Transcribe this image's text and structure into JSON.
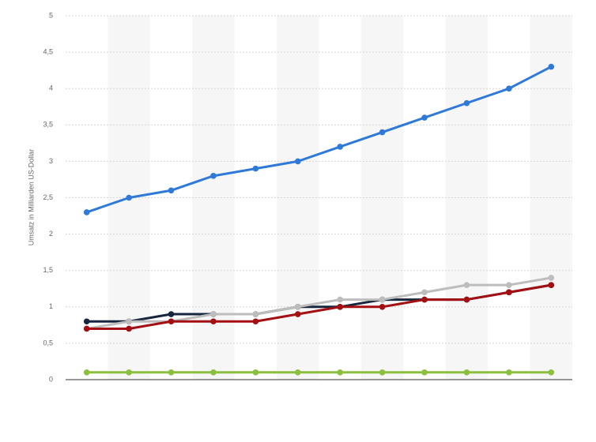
{
  "chart_data": {
    "type": "line",
    "y_label": "Umsatz in Milliarden US-Dollar",
    "categories": [
      null,
      null,
      null,
      null,
      null,
      null,
      null,
      null,
      null,
      null,
      null,
      null
    ],
    "series": [
      {
        "color": "#17253d",
        "values": [
          0.8,
          0.8,
          0.9,
          0.9,
          0.9,
          1.0,
          1.0,
          1.1,
          1.1,
          1.1,
          1.2,
          1.3
        ]
      },
      {
        "color": "#bdbdbd",
        "values": [
          0.7,
          0.8,
          0.8,
          0.9,
          0.9,
          1.0,
          1.1,
          1.1,
          1.2,
          1.3,
          1.3,
          1.4
        ]
      },
      {
        "color": "#a30f12",
        "values": [
          0.7,
          0.7,
          0.8,
          0.8,
          0.8,
          0.9,
          1.0,
          1.0,
          1.1,
          1.1,
          1.2,
          1.3
        ]
      },
      {
        "color": "#8cbf3f",
        "values": [
          0.1,
          0.1,
          0.1,
          0.1,
          0.1,
          0.1,
          0.1,
          0.1,
          0.1,
          0.1,
          0.1,
          0.1
        ]
      },
      {
        "color": "#2f7ad8",
        "values": [
          2.3,
          2.5,
          2.6,
          2.8,
          2.9,
          3.0,
          3.2,
          3.4,
          3.6,
          3.8,
          4.0,
          4.3
        ]
      }
    ],
    "ylim": [
      0,
      5
    ],
    "yticks": [
      0,
      {
        "value": 0.5,
        "label": "0,5"
      },
      1,
      {
        "value": 1.5,
        "label": "1,5"
      },
      2,
      {
        "value": 2.5,
        "label": "2,5"
      },
      3,
      {
        "value": 3.5,
        "label": "3,5"
      },
      4,
      {
        "value": 4.5,
        "label": "4,5"
      },
      5
    ],
    "grid": true
  }
}
